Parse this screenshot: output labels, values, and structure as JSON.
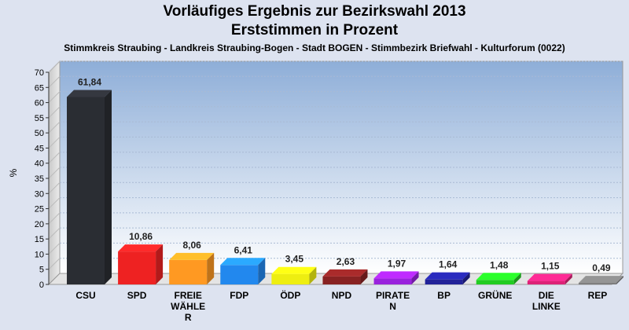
{
  "header": {
    "title": "Vorläufiges Ergebnis zur Bezirkswahl 2013",
    "subtitle": "Erststimmen in Prozent",
    "caption": "Stimmkreis Straubing - Landkreis Straubing-Bogen - Stadt BOGEN - Stimmbezirk Briefwahl - Kulturforum (0022)"
  },
  "chart_data": {
    "type": "bar",
    "ylabel": "%",
    "ylim": [
      0,
      70
    ],
    "yticks": [
      0,
      5,
      10,
      15,
      20,
      25,
      30,
      35,
      40,
      45,
      50,
      55,
      60,
      65,
      70
    ],
    "grid": true,
    "categories": [
      "CSU",
      "SPD",
      "FREIE WÄHLER",
      "FDP",
      "ÖDP",
      "NPD",
      "PIRATEN",
      "BP",
      "GRÜNE",
      "DIE LINKE",
      "REP"
    ],
    "category_lines": [
      [
        "CSU"
      ],
      [
        "SPD"
      ],
      [
        "FREIE",
        "WÄHLE",
        "R"
      ],
      [
        "FDP"
      ],
      [
        "ÖDP"
      ],
      [
        "NPD"
      ],
      [
        "PIRATE",
        "N"
      ],
      [
        "BP"
      ],
      [
        "GRÜNE"
      ],
      [
        "DIE",
        "LINKE"
      ],
      [
        "REP"
      ]
    ],
    "values": [
      61.84,
      10.86,
      8.06,
      6.41,
      3.45,
      2.63,
      1.97,
      1.64,
      1.48,
      1.15,
      0.49
    ],
    "value_labels": [
      "61,84",
      "10,86",
      "8,06",
      "6,41",
      "3,45",
      "2,63",
      "1,97",
      "1,64",
      "1,48",
      "1,15",
      "0,49"
    ],
    "colors": [
      "#2a2d33",
      "#ee2222",
      "#ff9922",
      "#2288ee",
      "#eeee11",
      "#882222",
      "#9922dd",
      "#222299",
      "#22cc22",
      "#dd2277",
      "#777777"
    ]
  }
}
